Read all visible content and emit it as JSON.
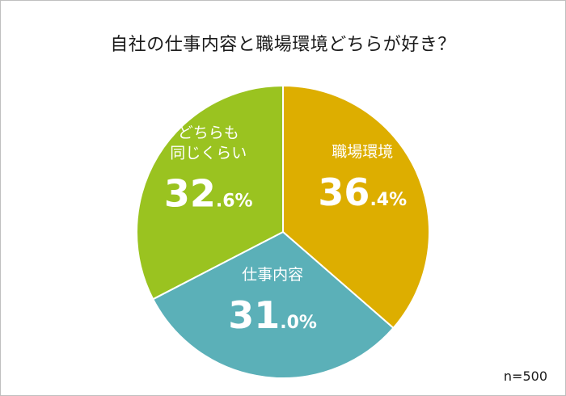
{
  "chart_data": {
    "type": "pie",
    "title": "自社の仕事内容と職場環境どちらが好き？",
    "start": "12 o'clock",
    "direction": "clockwise",
    "slices": [
      {
        "label": "職場環境",
        "label_lines": [
          "職場環境"
        ],
        "value": 36.4,
        "pct_int": "36",
        "pct_dec": ".4%",
        "color": "#DDAE00"
      },
      {
        "label": "仕事内容",
        "label_lines": [
          "仕事内容"
        ],
        "value": 31.0,
        "pct_int": "31",
        "pct_dec": ".0%",
        "color": "#5BB0B8"
      },
      {
        "label": "どちらも同じくらい",
        "label_lines": [
          "どちらも",
          "同じくらい"
        ],
        "value": 32.6,
        "pct_int": "32",
        "pct_dec": ".6%",
        "color": "#9AC320"
      }
    ],
    "note": "n=500"
  }
}
